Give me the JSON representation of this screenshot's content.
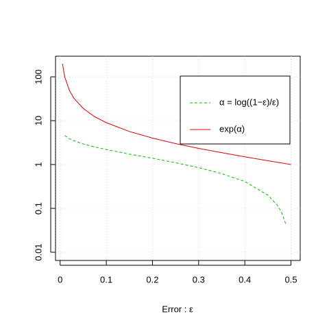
{
  "chart_data": {
    "type": "line",
    "xlabel": "Error : ε",
    "log_y": true,
    "grid": true,
    "legend": "top-right",
    "xlim": [
      -0.01,
      0.52
    ],
    "xticks": [
      0,
      0.1,
      0.2,
      0.3,
      0.4,
      0.5
    ],
    "ylim": [
      0.0065,
      295
    ],
    "yticks": [
      0.01,
      0.1,
      1,
      10,
      100
    ],
    "series": [
      {
        "name": "α = log((1−ε)/ε)",
        "color": "#00bb00",
        "dash": true,
        "x": [
          0.01,
          0.02,
          0.03,
          0.05,
          0.075,
          0.1,
          0.15,
          0.2,
          0.25,
          0.3,
          0.35,
          0.4,
          0.45,
          0.47,
          0.48,
          0.49
        ],
        "values": [
          4.6,
          3.89,
          3.48,
          2.94,
          2.51,
          2.2,
          1.73,
          1.39,
          1.1,
          0.85,
          0.62,
          0.41,
          0.2,
          0.12,
          0.08,
          0.04
        ]
      },
      {
        "name": "exp(α)",
        "color": "#dd0000",
        "dash": false,
        "x": [
          0.005,
          0.01,
          0.02,
          0.03,
          0.05,
          0.075,
          0.1,
          0.15,
          0.2,
          0.25,
          0.3,
          0.35,
          0.4,
          0.45,
          0.5
        ],
        "values": [
          199,
          99,
          49,
          32.3,
          19,
          12.3,
          9,
          5.67,
          4,
          3,
          2.33,
          1.86,
          1.5,
          1.22,
          1
        ]
      }
    ]
  }
}
